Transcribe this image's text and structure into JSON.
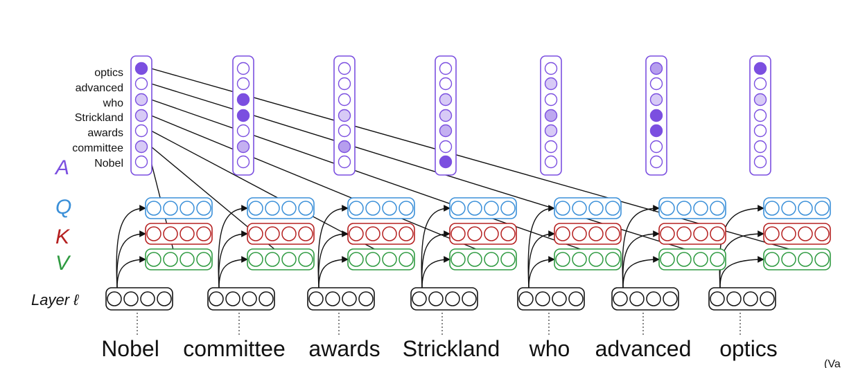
{
  "tokens": [
    "Nobel",
    "committee",
    "awards",
    "Strickland",
    "who",
    "advanced",
    "optics"
  ],
  "attention_labels": [
    "optics",
    "advanced",
    "who",
    "Strickland",
    "awards",
    "committee",
    "Nobel"
  ],
  "labels": {
    "attention": "A",
    "query": "Q",
    "key": "K",
    "value": "V",
    "layer": "Layer ℓ"
  },
  "citation": "(Va",
  "colors": {
    "attention": "#7b4fe0",
    "query": "#3a8fd8",
    "key": "#b52020",
    "value": "#2e9a40",
    "layer": "#111111",
    "ink": "#111111"
  },
  "attention_weights": [
    [
      1.0,
      0,
      0.3,
      0.3,
      0,
      0.3,
      0
    ],
    [
      0,
      0,
      1.0,
      1.0,
      0,
      0.45,
      0
    ],
    [
      0,
      0,
      0,
      0.3,
      0,
      0.55,
      0
    ],
    [
      0,
      0,
      0.3,
      0.3,
      0.45,
      0,
      1.0
    ],
    [
      0,
      0.3,
      0,
      0.5,
      0.3,
      0,
      0
    ],
    [
      0.55,
      0,
      0.3,
      1.0,
      1.0,
      0,
      0
    ],
    [
      1.0,
      0,
      0.3,
      0,
      0,
      0,
      0
    ]
  ],
  "vector_dims": 4
}
